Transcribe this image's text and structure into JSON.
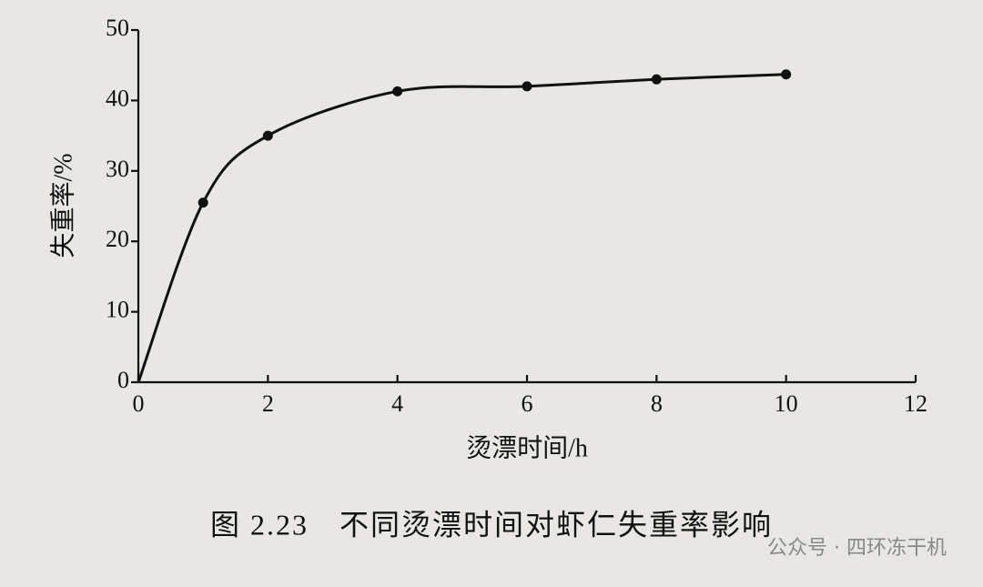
{
  "chart_data": {
    "type": "line",
    "x": [
      0,
      1,
      2,
      4,
      6,
      8,
      10
    ],
    "values": [
      0,
      25.5,
      35,
      41.3,
      42,
      43,
      43.7
    ],
    "color": "#111111",
    "xlabel": "烫漂时间/h",
    "ylabel": "失重率/%",
    "xlim": [
      0,
      12
    ],
    "xticks": [
      0,
      2,
      4,
      6,
      8,
      10,
      12
    ],
    "ylim": [
      0,
      50
    ],
    "yticks": [
      0,
      10,
      20,
      30,
      40,
      50
    ],
    "caption": "图 2.23　不同烫漂时间对虾仁失重率影响",
    "watermark": "公众号 · 四环冻干机"
  }
}
